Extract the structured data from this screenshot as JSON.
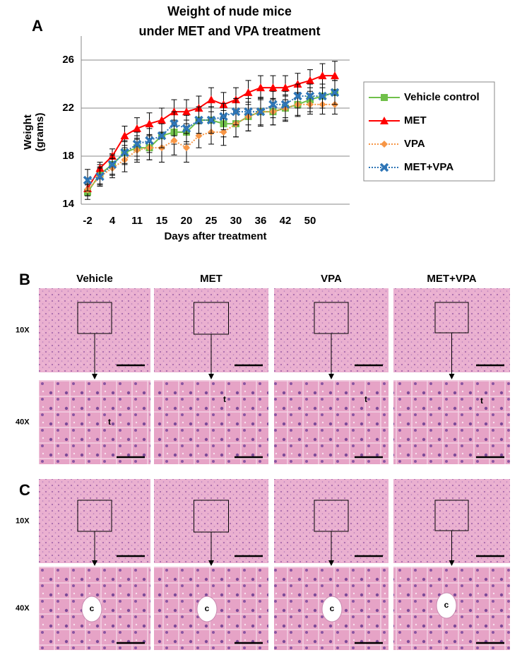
{
  "chart_data": {
    "type": "line",
    "panel_label": "A",
    "title": "Weight of nude mice",
    "subtitle": "under MET and VPA treatment",
    "x_label": "Days after treatment",
    "y_label": "Weight (grams)",
    "categories": [
      "-2",
      null,
      "4",
      null,
      "11",
      null,
      "15",
      null,
      "20",
      null,
      "25",
      null,
      "30",
      null,
      "36",
      null,
      "42",
      null,
      "50",
      null,
      null
    ],
    "ylim": [
      14,
      28
    ],
    "yticks": [
      14,
      18,
      22,
      26
    ],
    "grid": true,
    "legend": "right",
    "series": [
      {
        "name": "Vehicle control",
        "color": "#70c04a",
        "marker": "square",
        "dash": "solid",
        "values": [
          15.0,
          16.5,
          17.3,
          18.3,
          18.7,
          18.7,
          19.7,
          20.0,
          20.0,
          21.0,
          21.0,
          20.7,
          20.7,
          21.3,
          21.7,
          21.7,
          22.0,
          22.3,
          22.7,
          23.0,
          23.3
        ],
        "errors": [
          0.6,
          0.8,
          0.9,
          1.0,
          1.0,
          1.0,
          1.1,
          1.0,
          1.0,
          1.1,
          1.1,
          1.1,
          1.1,
          1.2,
          1.2,
          1.1,
          1.1,
          1.0,
          1.0,
          1.0,
          1.0
        ]
      },
      {
        "name": "MET",
        "color": "#ff0000",
        "marker": "triangle",
        "dash": "solid",
        "values": [
          15.3,
          17.0,
          18.0,
          19.7,
          20.3,
          20.7,
          21.0,
          21.7,
          21.7,
          22.0,
          22.7,
          22.3,
          22.7,
          23.3,
          23.7,
          23.7,
          23.7,
          24.0,
          24.3,
          24.7,
          24.7
        ],
        "errors": [
          0.6,
          0.5,
          0.6,
          0.8,
          0.9,
          0.9,
          1.0,
          1.0,
          1.0,
          1.0,
          1.0,
          1.0,
          1.0,
          1.0,
          1.0,
          1.0,
          1.0,
          0.9,
          0.9,
          1.0,
          1.2
        ]
      },
      {
        "name": "VPA",
        "color": "#f79646",
        "marker": "diamond",
        "dash": "dotted",
        "values": [
          15.2,
          16.3,
          17.0,
          17.7,
          18.5,
          18.7,
          18.7,
          19.3,
          18.7,
          19.7,
          20.0,
          20.0,
          20.7,
          21.3,
          21.7,
          21.7,
          22.0,
          22.3,
          22.3,
          22.3,
          22.3
        ],
        "errors": [
          0.5,
          0.7,
          0.8,
          1.0,
          1.0,
          1.0,
          1.2,
          1.2,
          1.2,
          1.0,
          1.0,
          1.1,
          1.1,
          1.2,
          1.2,
          1.1,
          1.0,
          0.9,
          0.8,
          0.8,
          0.8
        ]
      },
      {
        "name": "MET+VPA",
        "color": "#2e75b6",
        "marker": "cross",
        "dash": "dotted",
        "values": [
          16.0,
          16.3,
          17.3,
          18.3,
          19.0,
          19.3,
          19.7,
          20.7,
          20.3,
          21.0,
          21.0,
          21.3,
          21.7,
          21.7,
          21.7,
          22.3,
          22.3,
          23.0,
          23.0,
          23.0,
          23.3
        ],
        "errors": [
          0.9,
          0.8,
          0.8,
          0.9,
          1.0,
          1.0,
          1.0,
          1.0,
          1.1,
          1.1,
          1.1,
          1.1,
          1.1,
          1.1,
          1.1,
          1.1,
          1.1,
          1.0,
          1.0,
          1.0,
          1.0
        ]
      }
    ]
  },
  "histology": {
    "columns": [
      "Vehicle",
      "MET",
      "VPA",
      "MET+VPA"
    ],
    "rows": [
      "10X",
      "40X"
    ],
    "panels": [
      {
        "label": "B",
        "marker": "t"
      },
      {
        "label": "C",
        "marker": "c"
      }
    ]
  }
}
